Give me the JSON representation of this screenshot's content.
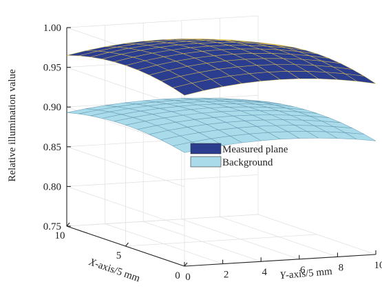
{
  "chart_data": {
    "type": "surface3d",
    "title": "",
    "zlabel": "Relative illumination value",
    "xlabel": "X-axis/5 mm",
    "ylabel": "Y-axis/5 mm",
    "zlim": [
      0.75,
      1.0
    ],
    "xlim": [
      0,
      10
    ],
    "ylim": [
      0,
      10
    ],
    "zticks": [
      "0.75",
      "0.80",
      "0.85",
      "0.90",
      "0.95",
      "1.00"
    ],
    "xticks": [
      "0",
      "5",
      "10"
    ],
    "yticks": [
      "0",
      "2",
      "4",
      "6",
      "8",
      "10"
    ],
    "grid": true,
    "legend_position": "center",
    "series": [
      {
        "name": "Measured plane",
        "color": "#2b3d8f",
        "edge_color": "#e8c84a",
        "center_value": 0.99,
        "corner_value": 0.965
      },
      {
        "name": "Background",
        "color": "#a9dbea",
        "edge_color": "#5a8fa8",
        "center_value": 0.912,
        "corner_value": 0.893
      }
    ]
  }
}
